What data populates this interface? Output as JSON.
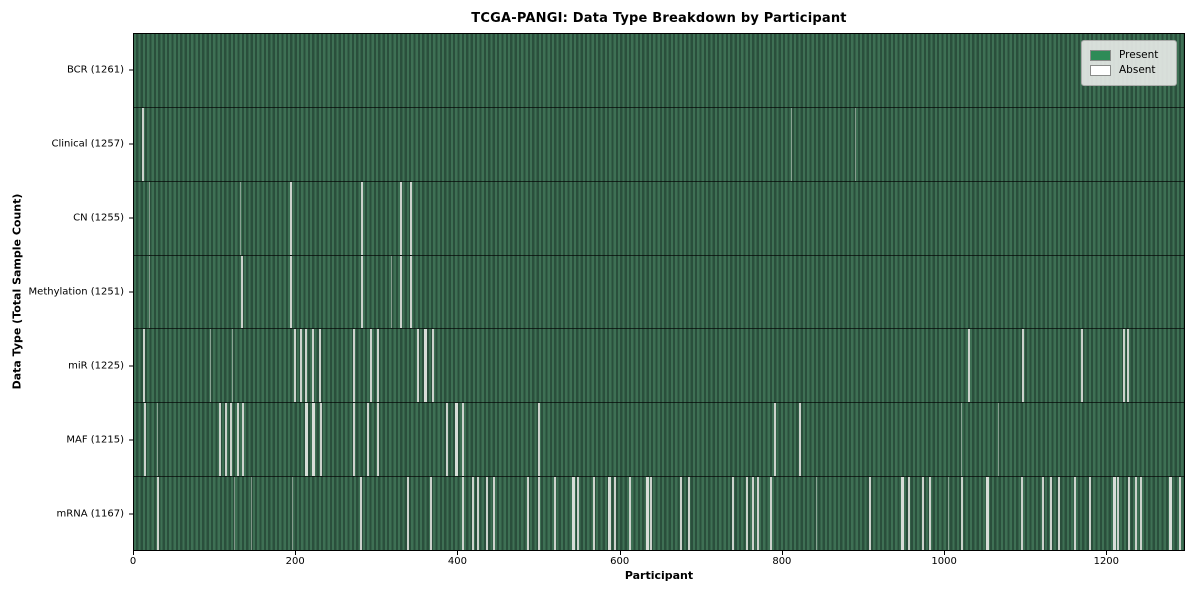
{
  "title": "TCGA-PANGI: Data Type Breakdown by Participant",
  "x_axis_label": "Participant",
  "y_axis_label": "Data Type (Total Sample Count)",
  "legend": {
    "present_label": "Present",
    "absent_label": "Absent",
    "present_color": "#2e8b57",
    "absent_color": "#ffffff",
    "position": "upper right"
  },
  "colors": {
    "bar_stripe_light": "#3e7054",
    "bar_stripe_dark": "#2a4f3c",
    "absent_line": "#ccd2cc",
    "background": "#ffffff",
    "axis": "#000000"
  },
  "x_axis": {
    "ticks": [
      0,
      200,
      400,
      600,
      800,
      1000,
      1200
    ],
    "max": 1297
  },
  "chart_data": {
    "type": "heatmap",
    "title": "TCGA-PANGI: Data Type Breakdown by Participant",
    "xlabel": "Participant",
    "ylabel": "Data Type (Total Sample Count)",
    "x_range": [
      0,
      1297
    ],
    "grid": false,
    "legend_entries": [
      "Present",
      "Absent"
    ],
    "legend_position": "upper right",
    "rows": [
      {
        "data_type": "BCR",
        "total_samples": 1261,
        "label": "BCR (1261)",
        "absent_participants_approx": []
      },
      {
        "data_type": "Clinical",
        "total_samples": 1257,
        "label": "Clinical (1257)",
        "absent_participants_approx": [
          [
            10,
            2
          ],
          [
            811,
            1
          ],
          [
            890,
            1
          ]
        ]
      },
      {
        "data_type": "CN",
        "total_samples": 1255,
        "label": "CN (1255)",
        "absent_participants_approx": [
          [
            18,
            1
          ],
          [
            131,
            1
          ],
          [
            193,
            2
          ],
          [
            281,
            2
          ],
          [
            329,
            2
          ],
          [
            341,
            2
          ]
        ]
      },
      {
        "data_type": "Methylation",
        "total_samples": 1251,
        "label": "Methylation (1251)",
        "absent_participants_approx": [
          [
            18,
            1
          ],
          [
            132,
            2
          ],
          [
            193,
            2
          ],
          [
            281,
            2
          ],
          [
            317,
            1
          ],
          [
            329,
            2
          ],
          [
            341,
            2
          ]
        ]
      },
      {
        "data_type": "miR",
        "total_samples": 1225,
        "label": "miR (1225)",
        "absent_participants_approx": [
          [
            11,
            2
          ],
          [
            94,
            1
          ],
          [
            121,
            1
          ],
          [
            198,
            2
          ],
          [
            205,
            2
          ],
          [
            211,
            2
          ],
          [
            220,
            2
          ],
          [
            228,
            2
          ],
          [
            271,
            2
          ],
          [
            291,
            2
          ],
          [
            300,
            2
          ],
          [
            349,
            2
          ],
          [
            358,
            3
          ],
          [
            368,
            2
          ],
          [
            1030,
            2
          ],
          [
            1097,
            2
          ],
          [
            1170,
            2
          ],
          [
            1222,
            2
          ],
          [
            1227,
            2
          ]
        ]
      },
      {
        "data_type": "MAF",
        "total_samples": 1215,
        "label": "MAF (1215)",
        "absent_participants_approx": [
          [
            12,
            2
          ],
          [
            29,
            1
          ],
          [
            105,
            2
          ],
          [
            112,
            2
          ],
          [
            118,
            2
          ],
          [
            127,
            2
          ],
          [
            134,
            2
          ],
          [
            211,
            3
          ],
          [
            220,
            3
          ],
          [
            230,
            2
          ],
          [
            271,
            2
          ],
          [
            288,
            2
          ],
          [
            300,
            2
          ],
          [
            385,
            2
          ],
          [
            396,
            3
          ],
          [
            405,
            2
          ],
          [
            499,
            2
          ],
          [
            791,
            2
          ],
          [
            822,
            2
          ],
          [
            1022,
            1
          ],
          [
            1067,
            1
          ]
        ]
      },
      {
        "data_type": "mRNA",
        "total_samples": 1167,
        "label": "mRNA (1167)",
        "absent_participants_approx": [
          [
            29,
            2
          ],
          [
            123,
            1
          ],
          [
            145,
            1
          ],
          [
            195,
            1
          ],
          [
            279,
            2
          ],
          [
            337,
            2
          ],
          [
            366,
            2
          ],
          [
            405,
            2
          ],
          [
            418,
            2
          ],
          [
            424,
            2
          ],
          [
            435,
            2
          ],
          [
            444,
            2
          ],
          [
            486,
            2
          ],
          [
            499,
            2
          ],
          [
            519,
            2
          ],
          [
            541,
            3
          ],
          [
            547,
            2
          ],
          [
            567,
            2
          ],
          [
            586,
            3
          ],
          [
            593,
            2
          ],
          [
            612,
            2
          ],
          [
            632,
            3
          ],
          [
            638,
            2
          ],
          [
            674,
            2
          ],
          [
            684,
            2
          ],
          [
            739,
            2
          ],
          [
            756,
            2
          ],
          [
            763,
            2
          ],
          [
            769,
            2
          ],
          [
            785,
            2
          ],
          [
            843,
            1
          ],
          [
            908,
            2
          ],
          [
            947,
            3
          ],
          [
            956,
            2
          ],
          [
            973,
            2
          ],
          [
            982,
            2
          ],
          [
            1005,
            1
          ],
          [
            1021,
            2
          ],
          [
            1053,
            3
          ],
          [
            1096,
            2
          ],
          [
            1122,
            2
          ],
          [
            1131,
            2
          ],
          [
            1141,
            2
          ],
          [
            1161,
            2
          ],
          [
            1180,
            2
          ],
          [
            1209,
            3
          ],
          [
            1214,
            2
          ],
          [
            1228,
            2
          ],
          [
            1236,
            2
          ],
          [
            1243,
            2
          ],
          [
            1278,
            3
          ],
          [
            1291,
            2
          ]
        ]
      }
    ]
  }
}
